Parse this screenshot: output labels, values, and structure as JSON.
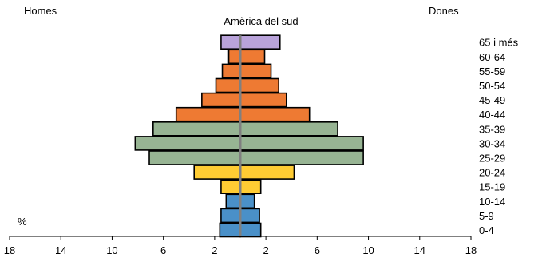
{
  "chart_data": {
    "type": "bar",
    "title": "Amèrica del sud",
    "left_label": "Homes",
    "right_label": "Dones",
    "unit_label": "%",
    "xlim": [
      -18,
      18
    ],
    "x_ticks": [
      -18,
      -14,
      -10,
      -6,
      -2,
      2,
      6,
      10,
      14,
      18
    ],
    "x_tick_labels": [
      "18",
      "14",
      "10",
      "6",
      "2",
      "2",
      "6",
      "10",
      "14",
      "18"
    ],
    "categories": [
      "0-4",
      "5-9",
      "10-14",
      "15-19",
      "20-24",
      "25-29",
      "30-34",
      "35-39",
      "40-44",
      "45-49",
      "50-54",
      "55-59",
      "60-64",
      "65 i més"
    ],
    "series": [
      {
        "name": "Homes",
        "values": [
          1.6,
          1.5,
          1.1,
          1.5,
          3.6,
          7.1,
          8.2,
          6.8,
          5.0,
          3.0,
          1.9,
          1.4,
          0.9,
          1.5
        ]
      },
      {
        "name": "Dones",
        "values": [
          1.6,
          1.5,
          1.1,
          1.6,
          4.2,
          9.6,
          9.6,
          7.6,
          5.4,
          3.6,
          3.0,
          2.4,
          1.9,
          3.1
        ]
      }
    ],
    "category_colors": [
      "#4a90c8",
      "#4a90c8",
      "#4a90c8",
      "#ffcc33",
      "#ffcc33",
      "#97b493",
      "#97b493",
      "#97b493",
      "#ee7a33",
      "#ee7a33",
      "#ee7a33",
      "#ee7a33",
      "#ee7a33",
      "#b9a3da"
    ],
    "center_line_color": "#808080",
    "grid": false,
    "legend": "none"
  }
}
